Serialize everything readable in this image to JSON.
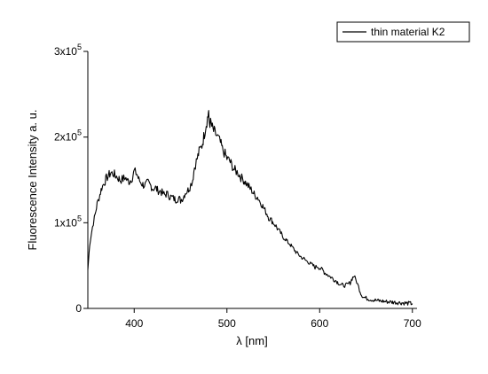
{
  "chart_data": {
    "type": "line",
    "title": "",
    "xlabel": "λ [nm]",
    "ylabel": "Fluorescence Intensity a. u.",
    "xlim": [
      350,
      705
    ],
    "ylim": [
      0,
      300000
    ],
    "x_ticks": [
      400,
      500,
      600,
      700
    ],
    "y_ticks": [
      {
        "value": 0,
        "mantissa": "0",
        "exponent": ""
      },
      {
        "value": 100000,
        "mantissa": "1x10",
        "exponent": "5"
      },
      {
        "value": 200000,
        "mantissa": "2x10",
        "exponent": "5"
      },
      {
        "value": 300000,
        "mantissa": "3x10",
        "exponent": "5"
      }
    ],
    "grid": false,
    "legend_position": "top-right",
    "series": [
      {
        "name": "thin material K2",
        "color": "#000000",
        "x": [
          350,
          352,
          355,
          358,
          360,
          363,
          365,
          368,
          370,
          373,
          375,
          378,
          380,
          383,
          385,
          388,
          390,
          393,
          395,
          398,
          400,
          403,
          405,
          408,
          410,
          413,
          415,
          418,
          420,
          423,
          425,
          428,
          430,
          433,
          435,
          438,
          440,
          443,
          445,
          448,
          450,
          453,
          455,
          458,
          460,
          463,
          465,
          468,
          470,
          473,
          475,
          477,
          479,
          480,
          481,
          483,
          485,
          487,
          490,
          493,
          495,
          498,
          500,
          503,
          505,
          508,
          510,
          513,
          515,
          518,
          520,
          523,
          525,
          528,
          530,
          533,
          535,
          538,
          540,
          543,
          545,
          548,
          550,
          553,
          555,
          558,
          560,
          563,
          565,
          568,
          570,
          573,
          575,
          578,
          580,
          583,
          585,
          588,
          590,
          593,
          595,
          598,
          600,
          603,
          605,
          608,
          610,
          613,
          615,
          618,
          620,
          623,
          625,
          628,
          630,
          633,
          635,
          637,
          640,
          643,
          645,
          648,
          650,
          653,
          655,
          658,
          660,
          663,
          665,
          668,
          670,
          673,
          675,
          678,
          680,
          683,
          685,
          688,
          690,
          693,
          695,
          698,
          700
        ],
        "y": [
          45000,
          75000,
          95000,
          110000,
          122000,
          133000,
          141000,
          147000,
          152000,
          156000,
          158000,
          157000,
          155000,
          152000,
          150000,
          151000,
          153000,
          149000,
          148000,
          153000,
          160000,
          157000,
          150000,
          146000,
          144000,
          145000,
          147000,
          143000,
          140000,
          141000,
          138000,
          137000,
          135000,
          132000,
          134000,
          131000,
          130000,
          128000,
          127000,
          129000,
          126000,
          130000,
          135000,
          138000,
          142000,
          150000,
          165000,
          175000,
          183000,
          190000,
          200000,
          212000,
          222000,
          228000,
          218000,
          215000,
          208000,
          205000,
          200000,
          193000,
          186000,
          180000,
          175000,
          172000,
          168000,
          162000,
          160000,
          157000,
          153000,
          150000,
          147000,
          143000,
          140000,
          136000,
          132000,
          130000,
          126000,
          121000,
          116000,
          111000,
          106000,
          103000,
          100000,
          96000,
          92000,
          88000,
          84000,
          81000,
          78000,
          75000,
          72000,
          68000,
          65000,
          62000,
          60000,
          58000,
          56000,
          54000,
          52000,
          50000,
          48000,
          49000,
          47000,
          45000,
          42000,
          40000,
          38000,
          36000,
          34000,
          32000,
          30000,
          28000,
          27000,
          27000,
          28000,
          30000,
          35000,
          38000,
          31000,
          22000,
          16000,
          13000,
          12000,
          11000,
          10500,
          10000,
          9500,
          9000,
          8800,
          8500,
          8000,
          7800,
          7600,
          7400,
          7200,
          7000,
          6800,
          6600,
          6400,
          6200,
          6000,
          5800,
          5600
        ]
      }
    ]
  }
}
